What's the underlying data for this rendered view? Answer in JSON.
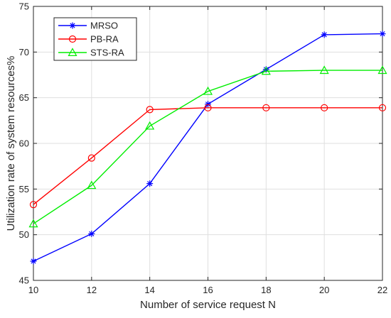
{
  "chart_data": {
    "type": "line",
    "xlabel": "Number of service request N",
    "ylabel": "Utilization rate of system resources%",
    "xlim": [
      10,
      22
    ],
    "ylim": [
      45,
      75
    ],
    "x": [
      10,
      12,
      14,
      16,
      18,
      20,
      22
    ],
    "xticks": [
      "10",
      "12",
      "14",
      "16",
      "18",
      "20",
      "22"
    ],
    "yticks": [
      "45",
      "50",
      "55",
      "60",
      "65",
      "70",
      "75"
    ],
    "grid": true,
    "legend_position": "top-left",
    "series": [
      {
        "name": "MRSO",
        "color": "#0000ff",
        "marker": "asterisk",
        "values": [
          47.1,
          50.1,
          55.6,
          64.3,
          68.1,
          71.9,
          72.0
        ]
      },
      {
        "name": "PB-RA",
        "color": "#ff0000",
        "marker": "circle",
        "values": [
          53.3,
          58.4,
          63.7,
          63.9,
          63.9,
          63.9,
          63.9
        ]
      },
      {
        "name": "STS-RA",
        "color": "#00ee00",
        "marker": "triangle",
        "values": [
          51.2,
          55.4,
          61.9,
          65.7,
          67.9,
          68.0,
          68.0
        ]
      }
    ]
  }
}
